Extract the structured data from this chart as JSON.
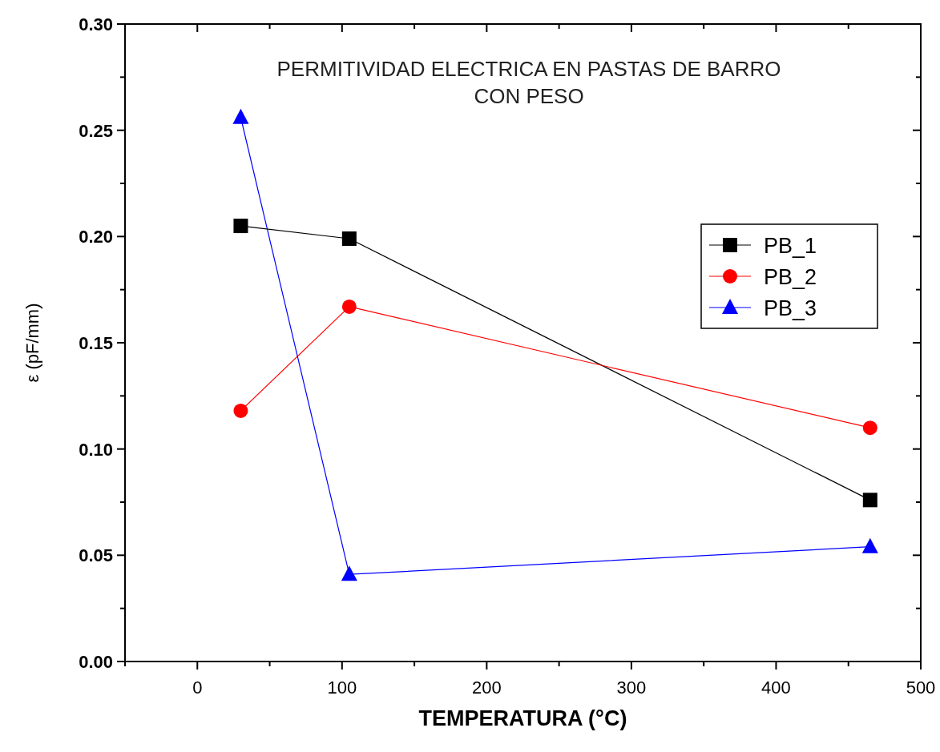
{
  "chart_data": {
    "type": "line",
    "title": "PERMITIVIDAD ELECTRICA EN PASTAS DE BARRO\nCON PESO",
    "xlabel": "TEMPERATURA (°C)",
    "ylabel": "ε (pF/mm)",
    "x": [
      30,
      105,
      465
    ],
    "series": [
      {
        "name": "PB_1",
        "color": "#000000",
        "marker": "square",
        "values": [
          0.205,
          0.199,
          0.076
        ]
      },
      {
        "name": "PB_2",
        "color": "#ff0000",
        "marker": "circle",
        "values": [
          0.118,
          0.167,
          0.11
        ]
      },
      {
        "name": "PB_3",
        "color": "#0000ff",
        "marker": "triangle",
        "values": [
          0.256,
          0.041,
          0.054
        ]
      }
    ],
    "xlim": [
      -50,
      500
    ],
    "xticks": [
      0,
      100,
      200,
      300,
      400,
      500
    ],
    "ylim": [
      0,
      0.3
    ],
    "yticks": [
      {
        "value": 0,
        "label": "0.00"
      },
      {
        "value": 0.05,
        "label": "0.05"
      },
      {
        "value": 0.1,
        "label": "0.10"
      },
      {
        "value": 0.15,
        "label": "0.15"
      },
      {
        "value": 0.2,
        "label": "0.20"
      },
      {
        "value": 0.25,
        "label": "0.25"
      },
      {
        "value": 0.3,
        "label": "0.30"
      }
    ],
    "grid": false,
    "legend": "right",
    "line_style": "solid"
  }
}
